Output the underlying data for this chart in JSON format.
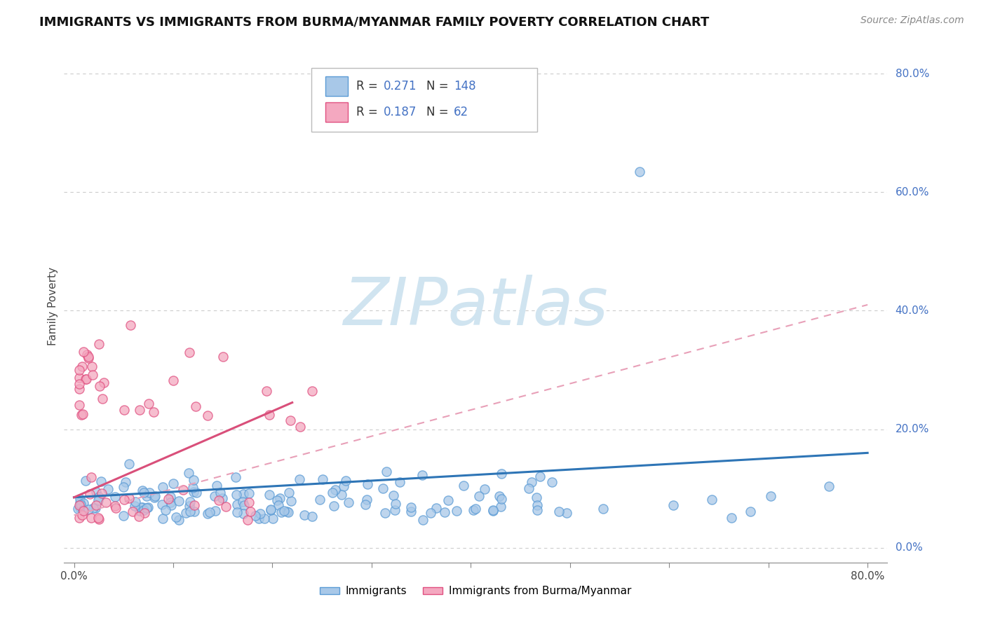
{
  "title": "IMMIGRANTS VS IMMIGRANTS FROM BURMA/MYANMAR FAMILY POVERTY CORRELATION CHART",
  "source": "Source: ZipAtlas.com",
  "ylabel": "Family Poverty",
  "blue_color": "#a8c8e8",
  "blue_edge_color": "#5b9bd5",
  "pink_color": "#f4a8c0",
  "pink_edge_color": "#e05080",
  "blue_line_color": "#2e75b6",
  "pink_line_color": "#d94f7a",
  "pink_dash_color": "#e8a0b8",
  "legend_r_blue": "0.271",
  "legend_n_blue": "148",
  "legend_r_pink": "0.187",
  "legend_n_pink": "62",
  "watermark_text": "ZIPatlas",
  "watermark_color": "#d0e4f0",
  "background_color": "#ffffff",
  "grid_color": "#cccccc",
  "right_label_color": "#4472c4",
  "xlim": [
    0.0,
    0.8
  ],
  "ylim": [
    0.0,
    0.8
  ],
  "xtick_positions": [
    0.0,
    0.1,
    0.2,
    0.3,
    0.4,
    0.5,
    0.6,
    0.7,
    0.8
  ],
  "xtick_labels": [
    "0.0%",
    "",
    "",
    "",
    "",
    "",
    "",
    "",
    "80.0%"
  ],
  "right_yticks": [
    0.8,
    0.6,
    0.4,
    0.2,
    0.0
  ],
  "right_ylabels": [
    "80.0%",
    "60.0%",
    "40.0%",
    "20.0%",
    "0.0%"
  ],
  "blue_trend": [
    0.0,
    0.8,
    0.085,
    0.16
  ],
  "pink_solid_trend": [
    0.0,
    0.22,
    0.085,
    0.245
  ],
  "pink_dash_trend": [
    0.0,
    0.8,
    0.055,
    0.41
  ],
  "title_fontsize": 13,
  "source_fontsize": 10,
  "tick_fontsize": 11,
  "ylabel_fontsize": 11,
  "scatter_size": 90,
  "scatter_alpha": 0.75
}
